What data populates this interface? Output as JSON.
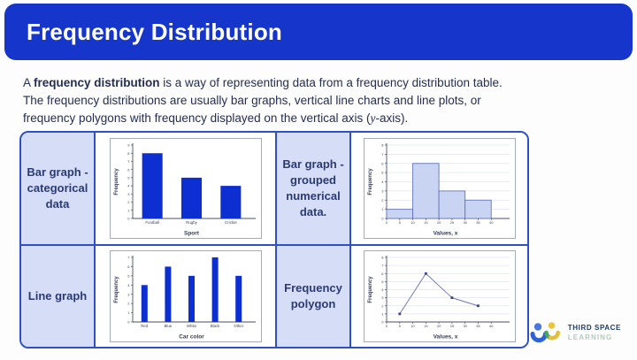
{
  "header": {
    "title": "Frequency Distribution"
  },
  "intro": {
    "line1_prefix": "A ",
    "line1_bold": "frequency distribution",
    "line1_rest": " is a way of representing data from a frequency distribution table.",
    "line2": "The frequency distributions are usually bar graphs, vertical line charts and line plots, or",
    "line3_prefix": "frequency polygons with frequency displayed on the vertical axis (",
    "line3_italic": "y",
    "line3_suffix": "-axis)."
  },
  "table": {
    "row1": {
      "label1": "Bar graph - categorical data",
      "label2": "Bar graph - grouped numerical data."
    },
    "row2": {
      "label1": "Line graph",
      "label2": "Frequency polygon"
    }
  },
  "logo": {
    "line1": "THIRD SPACE",
    "line2": "LEARNING"
  },
  "colors": {
    "header_bg": "#1636cb",
    "table_border": "#2e4fc5",
    "label_cell_bg": "#d6def7",
    "bar_blue": "#0d2fd2",
    "hist_fill": "#c9d3f2",
    "hist_stroke": "#6576bb",
    "polygon_line": "#7079b8",
    "polygon_marker": "#3a437e"
  },
  "chart_data": [
    {
      "type": "bar",
      "title": "Bar graph - categorical data",
      "categories": [
        "Football",
        "Rugby",
        "Cricket"
      ],
      "values": [
        8,
        5,
        4
      ],
      "xlabel": "Sport",
      "ylabel": "Frequency",
      "ylim": [
        0,
        9
      ],
      "grid": false,
      "bar_color": "#0d2fd2"
    },
    {
      "type": "histogram",
      "title": "Bar graph - grouped numerical data",
      "bin_edges": [
        0,
        10,
        20,
        30,
        40
      ],
      "values": [
        1,
        6,
        3,
        2
      ],
      "xticks": [
        0,
        5,
        10,
        15,
        20,
        25,
        30,
        35,
        40
      ],
      "xlim": [
        0,
        45
      ],
      "xlabel": "Values, x",
      "ylabel": "Frequency",
      "ylim": [
        0,
        8
      ],
      "grid": true,
      "fill": "#c9d3f2",
      "stroke": "#6576bb"
    },
    {
      "type": "vline",
      "title": "Line graph",
      "categories": [
        "Red",
        "Blue",
        "White",
        "Black",
        "Other"
      ],
      "values": [
        4,
        6,
        5,
        7,
        5
      ],
      "xlabel": "Car color",
      "ylabel": "Frequency",
      "ylim": [
        0,
        7
      ],
      "grid": false,
      "bar_color": "#0d2fd2"
    },
    {
      "type": "polygon",
      "title": "Frequency polygon",
      "x": [
        5,
        15,
        25,
        35
      ],
      "y": [
        1,
        6,
        3,
        2
      ],
      "xticks": [
        0,
        5,
        10,
        15,
        20,
        25,
        30,
        35,
        40
      ],
      "xlim": [
        0,
        45
      ],
      "xlabel": "Values, x",
      "ylabel": "Frequency",
      "ylim": [
        0,
        8
      ],
      "grid": true,
      "line_color": "#7079b8",
      "marker_color": "#3a437e"
    }
  ]
}
